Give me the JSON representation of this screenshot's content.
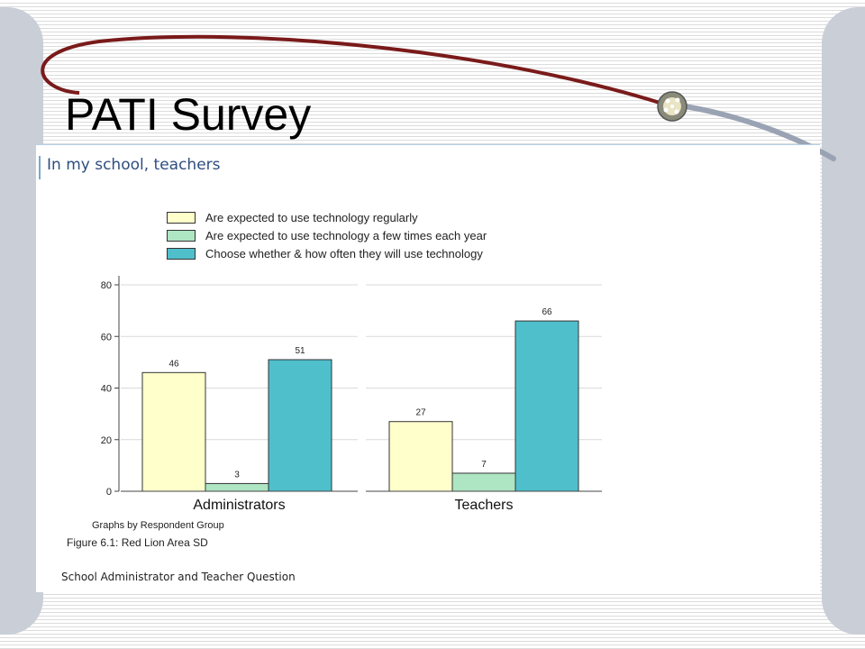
{
  "slide": {
    "title": "PATI Survey"
  },
  "panel": {
    "heading": "In my school, teachers"
  },
  "colors": {
    "series": [
      "#ffffcc",
      "#aee5c3",
      "#50bfcc"
    ],
    "swoosh": "#7a1a1a",
    "side_bars": "#c9ced7"
  },
  "chart_data": {
    "type": "bar",
    "title": "",
    "xlabel": "",
    "ylabel": "",
    "ylim": [
      0,
      80
    ],
    "yticks": [
      "0",
      "20",
      "40",
      "60",
      "80"
    ],
    "grid": true,
    "legend_position": "top",
    "panels": [
      "Administrators",
      "Teachers"
    ],
    "series": [
      {
        "name": "Are expected to use technology regularly",
        "values": [
          46,
          27
        ]
      },
      {
        "name": "Are expected to use technology a few times each year",
        "values": [
          3,
          7
        ]
      },
      {
        "name": "Choose whether & how often they will use technology",
        "values": [
          51,
          66
        ]
      }
    ]
  },
  "footnotes": {
    "graphs_by": "Graphs by Respondent Group",
    "figure": "Figure 6.1: Red Lion Area SD",
    "question": "School Administrator and Teacher Question"
  }
}
